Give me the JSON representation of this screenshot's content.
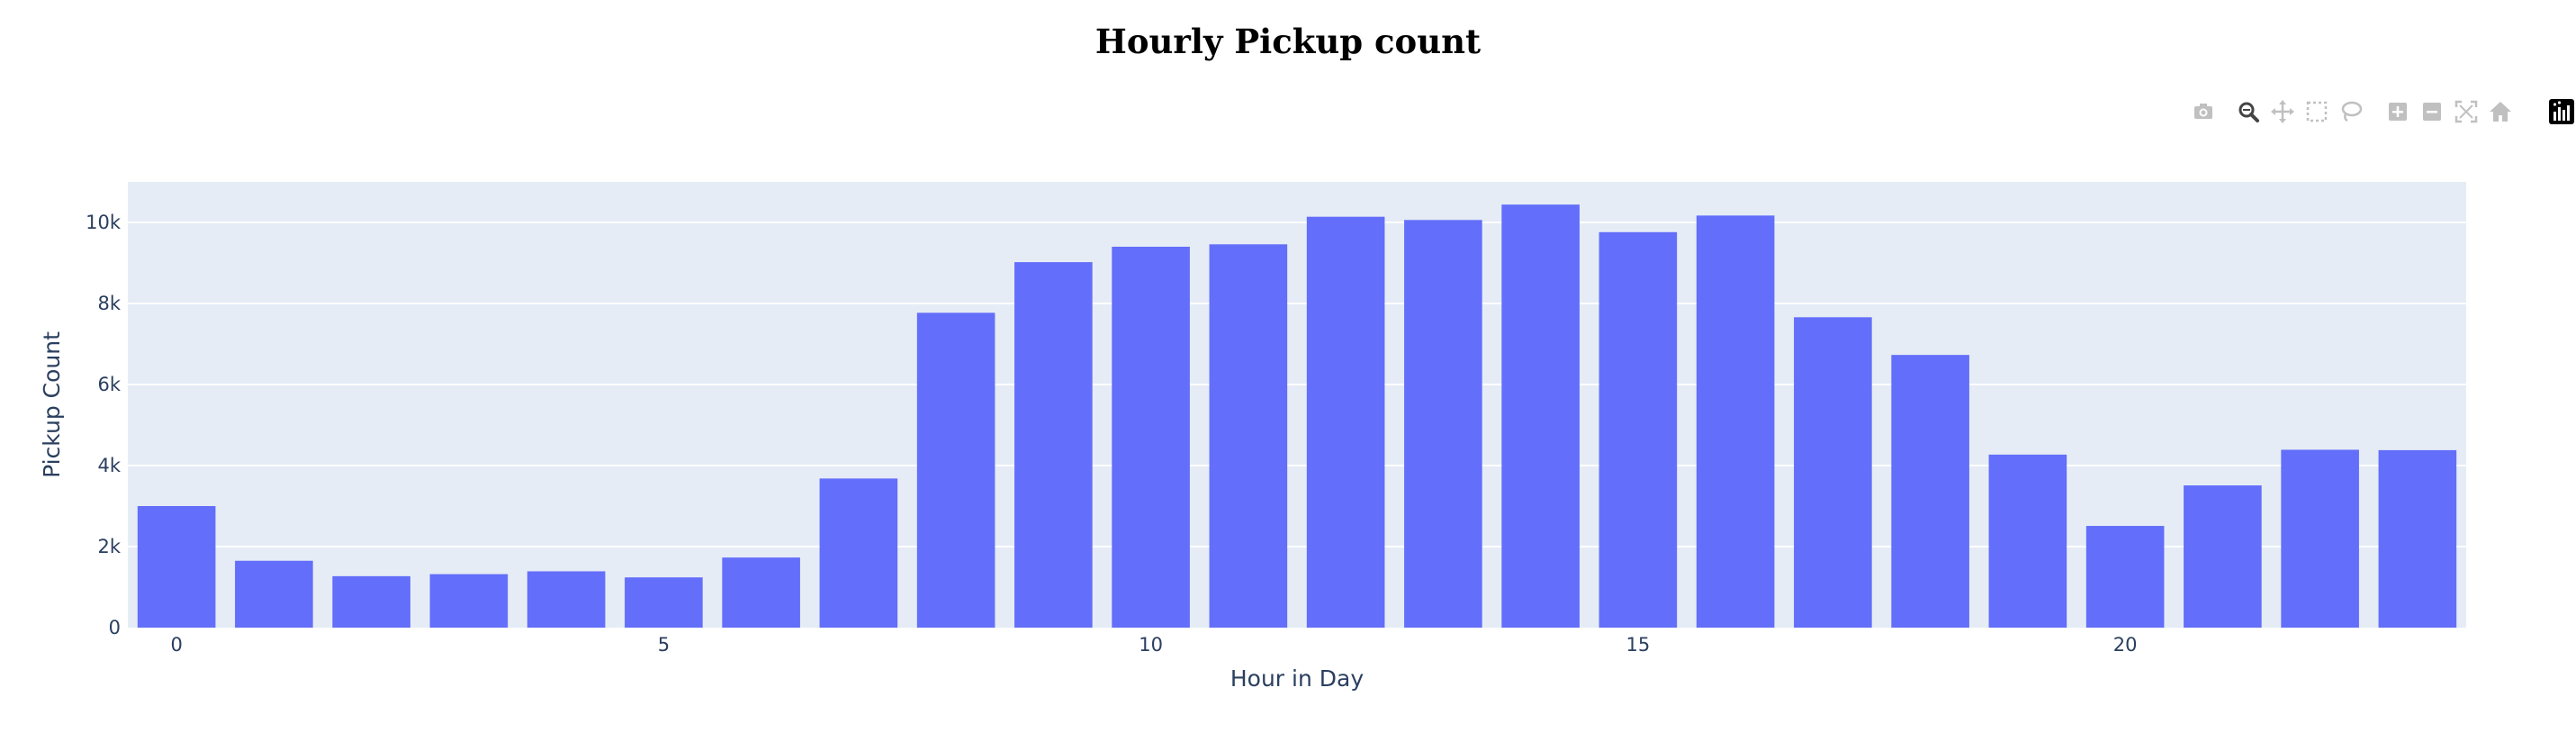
{
  "chart_data": {
    "type": "bar",
    "title": "Hourly Pickup count",
    "xlabel": "Hour in Day",
    "ylabel": "Pickup Count",
    "x": [
      0,
      1,
      2,
      3,
      4,
      5,
      6,
      7,
      8,
      9,
      10,
      11,
      12,
      13,
      14,
      15,
      16,
      17,
      18,
      19,
      20,
      21,
      22,
      23
    ],
    "values": [
      3000,
      1650,
      1270,
      1320,
      1390,
      1240,
      1730,
      3680,
      7770,
      9020,
      9400,
      9460,
      10140,
      10060,
      10440,
      9760,
      10170,
      7660,
      6730,
      4270,
      2510,
      3510,
      4390,
      4380
    ],
    "x_ticks": [
      0,
      5,
      10,
      15,
      20
    ],
    "x_tick_labels": [
      "0",
      "5",
      "10",
      "15",
      "20"
    ],
    "y_ticks": [
      0,
      2000,
      4000,
      6000,
      8000,
      10000
    ],
    "y_tick_labels": [
      "0",
      "2k",
      "4k",
      "6k",
      "8k",
      "10k"
    ],
    "ylim": [
      0,
      11000
    ],
    "xlim": [
      -0.5,
      23.5
    ],
    "grid": true,
    "bar_color": "#636efa",
    "plot_bg": "#e5ecf6"
  },
  "modebar": {
    "buttons": [
      {
        "name": "download-plot-button",
        "icon": "camera-icon"
      },
      {
        "name": "zoom-button",
        "icon": "zoom-icon",
        "active": true
      },
      {
        "name": "pan-button",
        "icon": "pan-icon"
      },
      {
        "name": "box-select-button",
        "icon": "box-select-icon"
      },
      {
        "name": "lasso-select-button",
        "icon": "lasso-icon"
      },
      {
        "name": "zoom-in-button",
        "icon": "zoom-in-icon"
      },
      {
        "name": "zoom-out-button",
        "icon": "zoom-out-icon"
      },
      {
        "name": "autoscale-button",
        "icon": "autoscale-icon"
      },
      {
        "name": "reset-axes-button",
        "icon": "home-icon"
      },
      {
        "name": "plotly-logo-link",
        "icon": "plotly-logo-icon"
      }
    ]
  }
}
